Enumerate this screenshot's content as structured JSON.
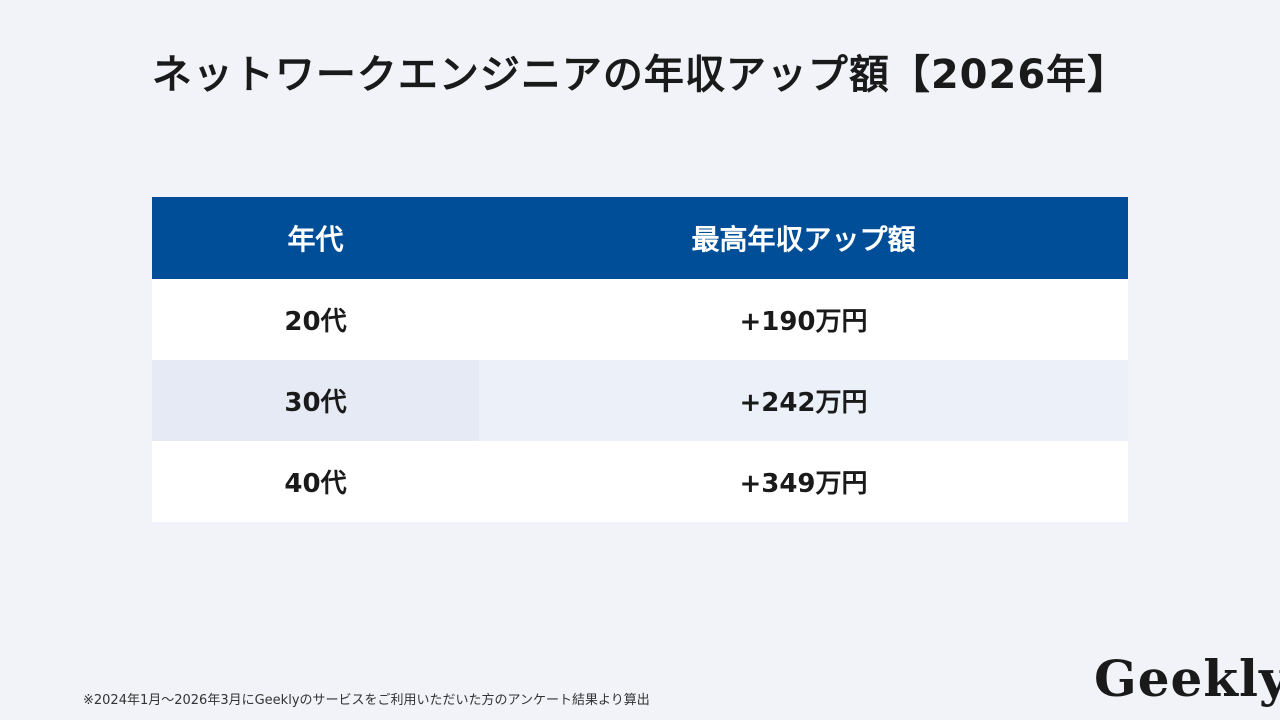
{
  "title": "ネットワークエンジニアの年収アップ額【2026年】",
  "table": {
    "headers": [
      "年代",
      "最高年収アップ額"
    ],
    "rows": [
      [
        "20代",
        "+190万円"
      ],
      [
        "30代",
        "+242万円"
      ],
      [
        "40代",
        "+349万円"
      ]
    ],
    "colors": {
      "header_bg": "#004e98",
      "header_text": "#ffffff",
      "row_white": "#ffffff",
      "row_shade": "#ebf0f9"
    }
  },
  "footnote": "※2024年1月～2026年3月にGeeklyのサービスをご利用いただいた方のアンケート結果より算出",
  "logo": "Geekly"
}
